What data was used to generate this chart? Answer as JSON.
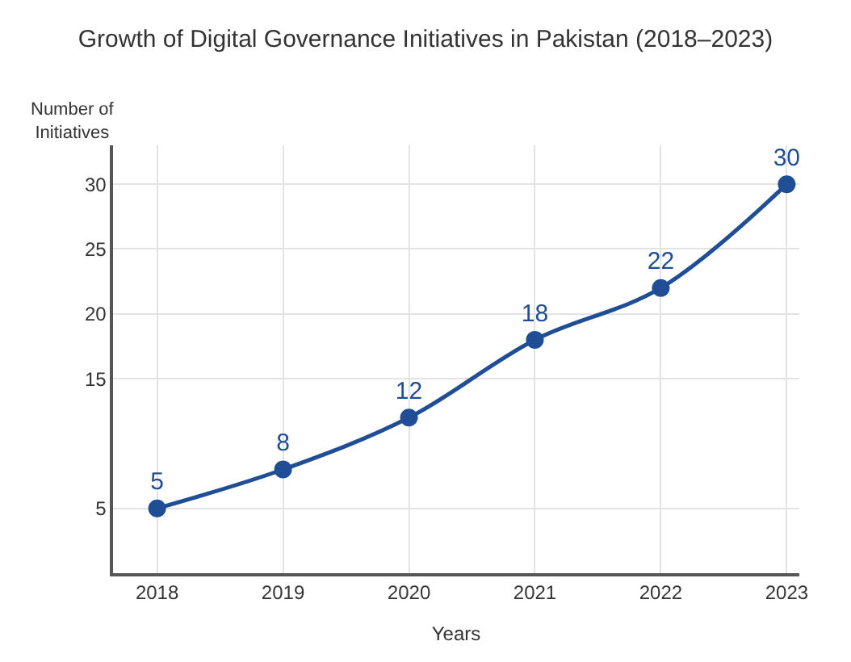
{
  "chart_data": {
    "type": "line",
    "title": "Growth of Digital Governance Initiatives in Pakistan (2018–2023)",
    "xlabel": "Years",
    "ylabel": "Number of\nInitiatives",
    "categories": [
      "2018",
      "2019",
      "2020",
      "2021",
      "2022",
      "2023"
    ],
    "series": [
      {
        "color": "#1f4e96",
        "values": [
          5,
          8,
          12,
          18,
          22,
          30
        ]
      }
    ],
    "ylim": [
      0,
      33
    ],
    "yticks": [
      5,
      15,
      20,
      25,
      30
    ],
    "grid": true,
    "marker": "circle",
    "line_style": "solid",
    "data_labels": true
  }
}
